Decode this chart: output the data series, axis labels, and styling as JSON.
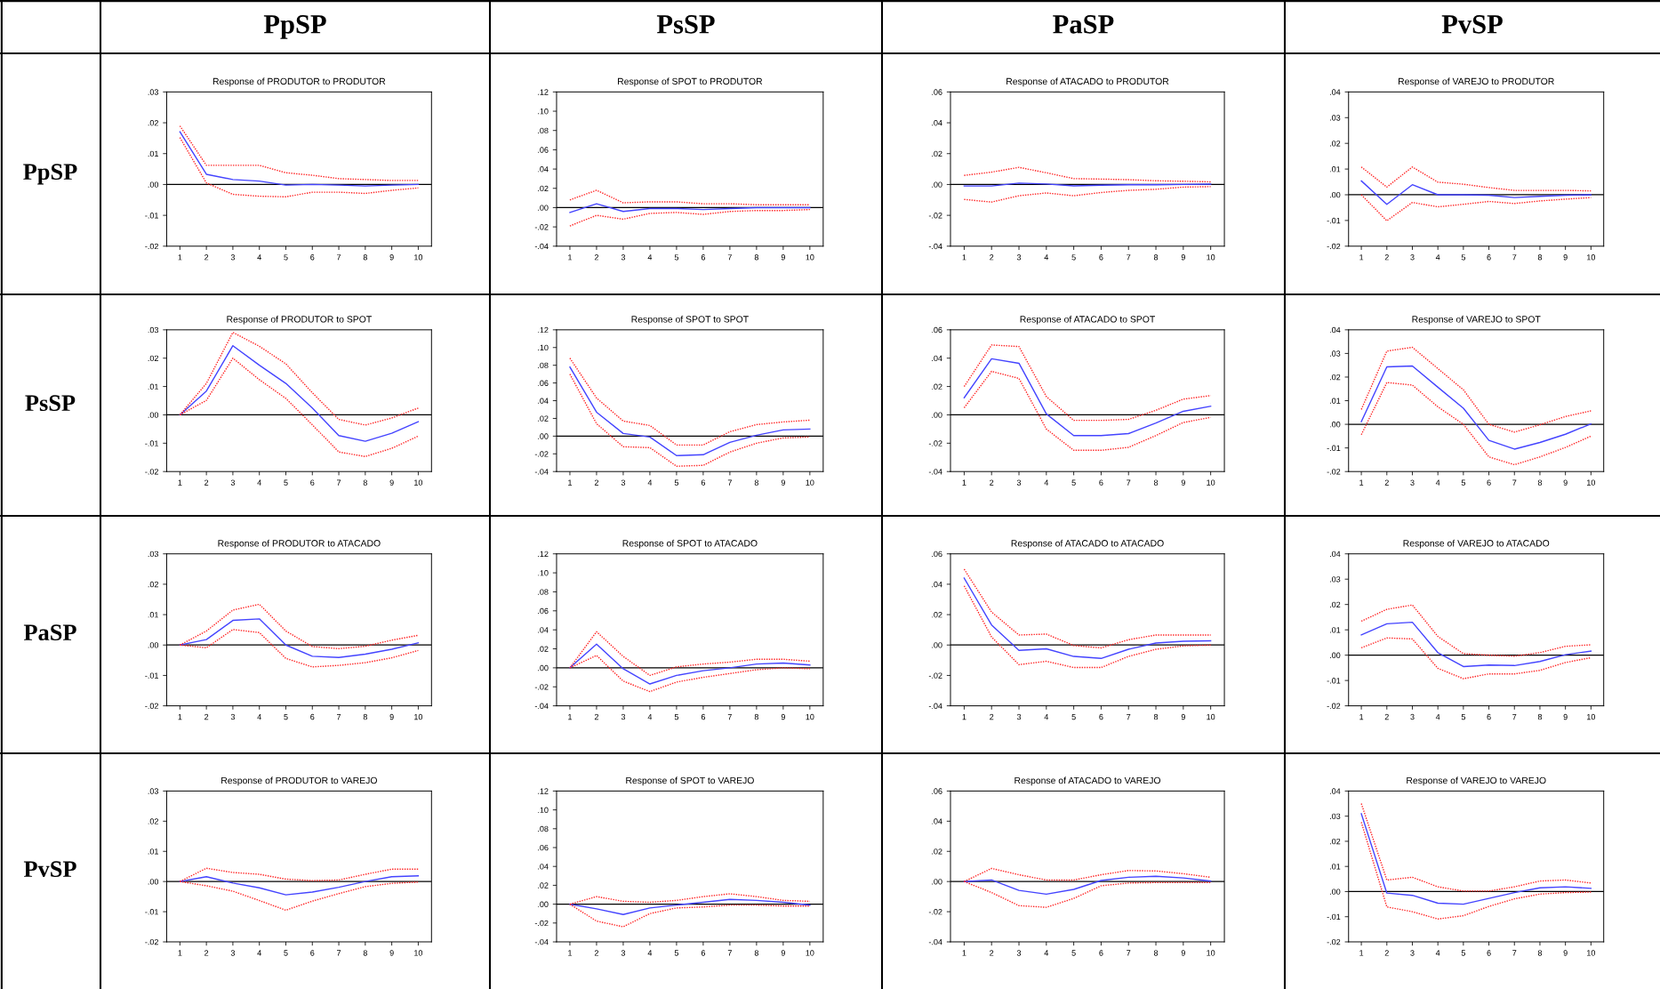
{
  "chart_data": [
    {
      "type": "line",
      "title": "Response of PRODUTOR to PRODUTOR",
      "annotations": [
        "PpSP",
        "PpSP"
      ],
      "x": [
        1,
        2,
        3,
        4,
        5,
        6,
        7,
        8,
        9,
        10
      ],
      "xlim": [
        0.5,
        10.5
      ],
      "xticks": [
        1,
        2,
        3,
        4,
        5,
        6,
        7,
        8,
        9,
        10
      ],
      "ylim": [
        -0.02,
        0.03
      ],
      "yticks": [
        {
          "value": -0.02,
          "label": "-.02"
        },
        {
          "value": -0.01,
          "label": "-.01"
        },
        {
          "value": 0,
          "label": ".00"
        },
        {
          "value": 0.01,
          "label": ".01"
        },
        {
          "value": 0.02,
          "label": ".02"
        },
        {
          "value": 0.03,
          "label": ".03"
        }
      ],
      "ref_lines": [
        {
          "axis": "y",
          "value": 0,
          "color": "#000000"
        }
      ],
      "series": [
        {
          "color": "#4444ff",
          "line_style": "solid",
          "values": [
            0.0171,
            0.0033,
            0.0016,
            0.0011,
            -0.0002,
            0,
            -0.0002,
            -0.0005,
            -0.0002,
            0
          ]
        },
        {
          "color": "#ff2020",
          "line_style": "dotted",
          "values": [
            0.019,
            0.0062,
            0.0062,
            0.0062,
            0.0038,
            0.003,
            0.0019,
            0.0016,
            0.0013,
            0.0013
          ]
        },
        {
          "color": "#ff2020",
          "line_style": "dotted",
          "values": [
            0.0152,
            0.0005,
            -0.0032,
            -0.0038,
            -0.004,
            -0.0025,
            -0.0025,
            -0.0029,
            -0.0019,
            -0.0011
          ]
        }
      ]
    },
    {
      "type": "line",
      "title": "Response of SPOT to PRODUTOR",
      "annotations": [
        "PsSP"
      ],
      "x": [
        1,
        2,
        3,
        4,
        5,
        6,
        7,
        8,
        9,
        10
      ],
      "xlim": [
        0.5,
        10.5
      ],
      "xticks": [
        1,
        2,
        3,
        4,
        5,
        6,
        7,
        8,
        9,
        10
      ],
      "ylim": [
        -0.04,
        0.12
      ],
      "yticks": [
        {
          "value": -0.04,
          "label": "-.04"
        },
        {
          "value": -0.02,
          "label": "-.02"
        },
        {
          "value": 0,
          "label": ".00"
        },
        {
          "value": 0.02,
          "label": ".02"
        },
        {
          "value": 0.04,
          "label": ".04"
        },
        {
          "value": 0.06,
          "label": ".06"
        },
        {
          "value": 0.08,
          "label": ".08"
        },
        {
          "value": 0.1,
          "label": ".10"
        },
        {
          "value": 0.12,
          "label": ".12"
        }
      ],
      "ref_lines": [
        {
          "axis": "y",
          "value": 0,
          "color": "#000000"
        }
      ],
      "series": [
        {
          "color": "#4444ff",
          "line_style": "solid",
          "values": [
            -0.005,
            0.004,
            -0.004,
            -0.001,
            -0.001,
            -0.002,
            -0.001,
            0,
            0,
            0
          ]
        },
        {
          "color": "#ff2020",
          "line_style": "dotted",
          "values": [
            0.008,
            0.018,
            0.005,
            0.006,
            0.006,
            0.004,
            0.004,
            0.003,
            0.003,
            0.003
          ]
        },
        {
          "color": "#ff2020",
          "line_style": "dotted",
          "values": [
            -0.019,
            -0.008,
            -0.012,
            -0.006,
            -0.005,
            -0.007,
            -0.004,
            -0.003,
            -0.003,
            -0.002
          ]
        }
      ]
    },
    {
      "type": "line",
      "title": "Response of ATACADO to PRODUTOR",
      "annotations": [
        "PaSP"
      ],
      "x": [
        1,
        2,
        3,
        4,
        5,
        6,
        7,
        8,
        9,
        10
      ],
      "xlim": [
        0.5,
        10.5
      ],
      "xticks": [
        1,
        2,
        3,
        4,
        5,
        6,
        7,
        8,
        9,
        10
      ],
      "ylim": [
        -0.04,
        0.06
      ],
      "yticks": [
        {
          "value": -0.04,
          "label": "-.04"
        },
        {
          "value": -0.02,
          "label": "-.02"
        },
        {
          "value": 0,
          "label": ".00"
        },
        {
          "value": 0.02,
          "label": ".02"
        },
        {
          "value": 0.04,
          "label": ".04"
        },
        {
          "value": 0.06,
          "label": ".06"
        }
      ],
      "ref_lines": [
        {
          "axis": "y",
          "value": 0,
          "color": "#000000"
        }
      ],
      "series": [
        {
          "color": "#4444ff",
          "line_style": "solid",
          "values": [
            -0.001,
            -0.001,
            0.0009,
            0.0003,
            -0.0009,
            -0.0005,
            -0.0002,
            -0.0002,
            0,
            0.0002
          ]
        },
        {
          "color": "#ff2020",
          "line_style": "dotted",
          "values": [
            0.0059,
            0.008,
            0.0111,
            0.0076,
            0.0038,
            0.0035,
            0.0031,
            0.0024,
            0.0021,
            0.0017
          ]
        },
        {
          "color": "#ff2020",
          "line_style": "dotted",
          "values": [
            -0.0097,
            -0.0114,
            -0.0073,
            -0.0055,
            -0.0073,
            -0.0052,
            -0.0038,
            -0.0031,
            -0.0017,
            -0.0014
          ]
        }
      ]
    },
    {
      "type": "line",
      "title": "Response of VAREJO to PRODUTOR",
      "annotations": [
        "PvSP"
      ],
      "x": [
        1,
        2,
        3,
        4,
        5,
        6,
        7,
        8,
        9,
        10
      ],
      "xlim": [
        0.5,
        10.5
      ],
      "xticks": [
        1,
        2,
        3,
        4,
        5,
        6,
        7,
        8,
        9,
        10
      ],
      "ylim": [
        -0.02,
        0.04
      ],
      "yticks": [
        {
          "value": -0.02,
          "label": "-.02"
        },
        {
          "value": -0.01,
          "label": "-.01"
        },
        {
          "value": 0,
          "label": ".00"
        },
        {
          "value": 0.01,
          "label": ".01"
        },
        {
          "value": 0.02,
          "label": ".02"
        },
        {
          "value": 0.03,
          "label": ".03"
        },
        {
          "value": 0.04,
          "label": ".04"
        }
      ],
      "ref_lines": [
        {
          "axis": "y",
          "value": 0,
          "color": "#000000"
        }
      ],
      "series": [
        {
          "color": "#4444ff",
          "line_style": "solid",
          "values": [
            0.0054,
            -0.0037,
            0.0039,
            0,
            0,
            -0.0002,
            -0.0011,
            -0.0006,
            -0.0002,
            0
          ]
        },
        {
          "color": "#ff2020",
          "line_style": "dotted",
          "values": [
            0.0108,
            0.003,
            0.0108,
            0.0049,
            0.0041,
            0.0028,
            0.0017,
            0.0017,
            0.0017,
            0.0015
          ]
        },
        {
          "color": "#ff2020",
          "line_style": "dotted",
          "values": [
            0,
            -0.0101,
            -0.003,
            -0.0047,
            -0.0037,
            -0.0026,
            -0.0034,
            -0.0024,
            -0.0017,
            -0.0011
          ]
        }
      ]
    },
    {
      "type": "line",
      "title": "Response of PRODUTOR to SPOT",
      "annotations": [
        "PsSP"
      ],
      "x": [
        1,
        2,
        3,
        4,
        5,
        6,
        7,
        8,
        9,
        10
      ],
      "xlim": [
        0.5,
        10.5
      ],
      "xticks": [
        1,
        2,
        3,
        4,
        5,
        6,
        7,
        8,
        9,
        10
      ],
      "ylim": [
        -0.02,
        0.03
      ],
      "yticks": [
        {
          "value": -0.02,
          "label": "-.02"
        },
        {
          "value": -0.01,
          "label": "-.01"
        },
        {
          "value": 0,
          "label": ".00"
        },
        {
          "value": 0.01,
          "label": ".01"
        },
        {
          "value": 0.02,
          "label": ".02"
        },
        {
          "value": 0.03,
          "label": ".03"
        }
      ],
      "ref_lines": [
        {
          "axis": "y",
          "value": 0,
          "color": "#000000"
        }
      ],
      "series": [
        {
          "color": "#4444ff",
          "line_style": "solid",
          "values": [
            0,
            0.0084,
            0.0244,
            0.0175,
            0.0111,
            0.0024,
            -0.0073,
            -0.0093,
            -0.0065,
            -0.0024
          ]
        },
        {
          "color": "#ff2020",
          "line_style": "dotted",
          "values": [
            0,
            0.0111,
            0.0291,
            0.0242,
            0.018,
            0.0078,
            -0.0016,
            -0.0036,
            -0.0011,
            0.0024
          ]
        },
        {
          "color": "#ff2020",
          "line_style": "dotted",
          "values": [
            0,
            0.0051,
            0.02,
            0.0124,
            0.0058,
            -0.0035,
            -0.0131,
            -0.0147,
            -0.0118,
            -0.0075
          ]
        }
      ]
    },
    {
      "type": "line",
      "title": "Response of SPOT to SPOT",
      "x": [
        1,
        2,
        3,
        4,
        5,
        6,
        7,
        8,
        9,
        10
      ],
      "xlim": [
        0.5,
        10.5
      ],
      "xticks": [
        1,
        2,
        3,
        4,
        5,
        6,
        7,
        8,
        9,
        10
      ],
      "ylim": [
        -0.04,
        0.12
      ],
      "yticks": [
        {
          "value": -0.04,
          "label": "-.04"
        },
        {
          "value": -0.02,
          "label": "-.02"
        },
        {
          "value": 0,
          "label": ".00"
        },
        {
          "value": 0.02,
          "label": ".02"
        },
        {
          "value": 0.04,
          "label": ".04"
        },
        {
          "value": 0.06,
          "label": ".06"
        },
        {
          "value": 0.08,
          "label": ".08"
        },
        {
          "value": 0.1,
          "label": ".10"
        },
        {
          "value": 0.12,
          "label": ".12"
        }
      ],
      "ref_lines": [
        {
          "axis": "y",
          "value": 0,
          "color": "#000000"
        }
      ],
      "series": [
        {
          "color": "#4444ff",
          "line_style": "solid",
          "values": [
            0.078,
            0.027,
            0.003,
            -0.001,
            -0.022,
            -0.021,
            -0.007,
            0.001,
            0.007,
            0.008
          ]
        },
        {
          "color": "#ff2020",
          "line_style": "dotted",
          "values": [
            0.088,
            0.043,
            0.017,
            0.012,
            -0.01,
            -0.01,
            0.005,
            0.013,
            0.016,
            0.018
          ]
        },
        {
          "color": "#ff2020",
          "line_style": "dotted",
          "values": [
            0.07,
            0.014,
            -0.012,
            -0.013,
            -0.034,
            -0.033,
            -0.018,
            -0.008,
            -0.002,
            -0.001
          ]
        }
      ]
    },
    {
      "type": "line",
      "title": "Response of ATACADO to SPOT",
      "x": [
        1,
        2,
        3,
        4,
        5,
        6,
        7,
        8,
        9,
        10
      ],
      "xlim": [
        0.5,
        10.5
      ],
      "xticks": [
        1,
        2,
        3,
        4,
        5,
        6,
        7,
        8,
        9,
        10
      ],
      "ylim": [
        -0.04,
        0.06
      ],
      "yticks": [
        {
          "value": -0.04,
          "label": "-.04"
        },
        {
          "value": -0.02,
          "label": "-.02"
        },
        {
          "value": 0,
          "label": ".00"
        },
        {
          "value": 0.02,
          "label": ".02"
        },
        {
          "value": 0.04,
          "label": ".04"
        },
        {
          "value": 0.06,
          "label": ".06"
        }
      ],
      "ref_lines": [
        {
          "axis": "y",
          "value": 0,
          "color": "#000000"
        }
      ],
      "series": [
        {
          "color": "#4444ff",
          "line_style": "solid",
          "values": [
            0.0121,
            0.0396,
            0.0364,
            0.0007,
            -0.0146,
            -0.0146,
            -0.0132,
            -0.0057,
            0.0025,
            0.0061
          ]
        },
        {
          "color": "#ff2020",
          "line_style": "dotted",
          "values": [
            0.02,
            0.0493,
            0.0482,
            0.0129,
            -0.0039,
            -0.0039,
            -0.0032,
            0.0032,
            0.0111,
            0.0136
          ]
        },
        {
          "color": "#ff2020",
          "line_style": "dotted",
          "values": [
            0.005,
            0.0307,
            0.0257,
            -0.01,
            -0.025,
            -0.025,
            -0.0229,
            -0.0146,
            -0.0054,
            -0.0018
          ]
        }
      ]
    },
    {
      "type": "line",
      "title": "Response of VAREJO to SPOT",
      "x": [
        1,
        2,
        3,
        4,
        5,
        6,
        7,
        8,
        9,
        10
      ],
      "xlim": [
        0.5,
        10.5
      ],
      "xticks": [
        1,
        2,
        3,
        4,
        5,
        6,
        7,
        8,
        9,
        10
      ],
      "ylim": [
        -0.02,
        0.04
      ],
      "yticks": [
        {
          "value": -0.02,
          "label": "-.02"
        },
        {
          "value": -0.01,
          "label": "-.01"
        },
        {
          "value": 0,
          "label": ".00"
        },
        {
          "value": 0.01,
          "label": ".01"
        },
        {
          "value": 0.02,
          "label": ".02"
        },
        {
          "value": 0.03,
          "label": ".03"
        },
        {
          "value": 0.04,
          "label": ".04"
        }
      ],
      "ref_lines": [
        {
          "axis": "y",
          "value": 0,
          "color": "#000000"
        }
      ],
      "series": [
        {
          "color": "#4444ff",
          "line_style": "solid",
          "values": [
            0.0011,
            0.0243,
            0.0247,
            0.0157,
            0.0068,
            -0.0068,
            -0.0105,
            -0.0077,
            -0.0042,
            0.0002
          ]
        },
        {
          "color": "#ff2020",
          "line_style": "dotted",
          "values": [
            0.0063,
            0.031,
            0.0326,
            0.0236,
            0.0146,
            0,
            -0.0033,
            -0.0002,
            0.0033,
            0.0057
          ]
        },
        {
          "color": "#ff2020",
          "line_style": "dotted",
          "values": [
            -0.0044,
            0.0177,
            0.0166,
            0.0074,
            0,
            -0.0138,
            -0.0171,
            -0.0138,
            -0.0098,
            -0.005
          ]
        }
      ]
    },
    {
      "type": "line",
      "title": "Response of PRODUTOR to ATACADO",
      "annotations": [
        "PaSP"
      ],
      "x": [
        1,
        2,
        3,
        4,
        5,
        6,
        7,
        8,
        9,
        10
      ],
      "xlim": [
        0.5,
        10.5
      ],
      "xticks": [
        1,
        2,
        3,
        4,
        5,
        6,
        7,
        8,
        9,
        10
      ],
      "ylim": [
        -0.02,
        0.03
      ],
      "yticks": [
        {
          "value": -0.02,
          "label": "-.02"
        },
        {
          "value": -0.01,
          "label": "-.01"
        },
        {
          "value": 0,
          "label": ".00"
        },
        {
          "value": 0.01,
          "label": ".01"
        },
        {
          "value": 0.02,
          "label": ".02"
        },
        {
          "value": 0.03,
          "label": ".03"
        }
      ],
      "ref_lines": [
        {
          "axis": "y",
          "value": 0,
          "color": "#000000"
        }
      ],
      "series": [
        {
          "color": "#4444ff",
          "line_style": "solid",
          "values": [
            0,
            0.0018,
            0.0081,
            0.0086,
            0,
            -0.0037,
            -0.0041,
            -0.003,
            -0.0014,
            0.0007
          ]
        },
        {
          "color": "#ff2020",
          "line_style": "dotted",
          "values": [
            0,
            0.0046,
            0.0115,
            0.0134,
            0.0046,
            -0.0005,
            -0.0012,
            -0.0004,
            0.0016,
            0.0032
          ]
        },
        {
          "color": "#ff2020",
          "line_style": "dotted",
          "values": [
            0,
            -0.0009,
            0.0051,
            0.0041,
            -0.0044,
            -0.0072,
            -0.0067,
            -0.0058,
            -0.0042,
            -0.0018
          ]
        }
      ]
    },
    {
      "type": "line",
      "title": "Response of SPOT to ATACADO",
      "x": [
        1,
        2,
        3,
        4,
        5,
        6,
        7,
        8,
        9,
        10
      ],
      "xlim": [
        0.5,
        10.5
      ],
      "xticks": [
        1,
        2,
        3,
        4,
        5,
        6,
        7,
        8,
        9,
        10
      ],
      "ylim": [
        -0.04,
        0.12
      ],
      "yticks": [
        {
          "value": -0.04,
          "label": "-.04"
        },
        {
          "value": -0.02,
          "label": "-.02"
        },
        {
          "value": 0,
          "label": ".00"
        },
        {
          "value": 0.02,
          "label": ".02"
        },
        {
          "value": 0.04,
          "label": ".04"
        },
        {
          "value": 0.06,
          "label": ".06"
        },
        {
          "value": 0.08,
          "label": ".08"
        },
        {
          "value": 0.1,
          "label": ".10"
        },
        {
          "value": 0.12,
          "label": ".12"
        }
      ],
      "ref_lines": [
        {
          "axis": "y",
          "value": 0,
          "color": "#000000"
        }
      ],
      "series": [
        {
          "color": "#4444ff",
          "line_style": "solid",
          "values": [
            0,
            0.025,
            -0.001,
            -0.017,
            -0.008,
            -0.003,
            0,
            0.004,
            0.005,
            0.003
          ]
        },
        {
          "color": "#ff2020",
          "line_style": "dotted",
          "values": [
            0,
            0.038,
            0.012,
            -0.008,
            0.001,
            0.004,
            0.006,
            0.009,
            0.009,
            0.007
          ]
        },
        {
          "color": "#ff2020",
          "line_style": "dotted",
          "values": [
            0,
            0.013,
            -0.014,
            -0.025,
            -0.015,
            -0.01,
            -0.006,
            -0.002,
            0,
            -0.001
          ]
        }
      ]
    },
    {
      "type": "line",
      "title": "Response of ATACADO to ATACADO",
      "x": [
        1,
        2,
        3,
        4,
        5,
        6,
        7,
        8,
        9,
        10
      ],
      "xlim": [
        0.5,
        10.5
      ],
      "xticks": [
        1,
        2,
        3,
        4,
        5,
        6,
        7,
        8,
        9,
        10
      ],
      "ylim": [
        -0.04,
        0.06
      ],
      "yticks": [
        {
          "value": -0.04,
          "label": "-.04"
        },
        {
          "value": -0.02,
          "label": "-.02"
        },
        {
          "value": 0,
          "label": ".00"
        },
        {
          "value": 0.02,
          "label": ".02"
        },
        {
          "value": 0.04,
          "label": ".04"
        },
        {
          "value": 0.06,
          "label": ".06"
        }
      ],
      "ref_lines": [
        {
          "axis": "y",
          "value": 0,
          "color": "#000000"
        }
      ],
      "series": [
        {
          "color": "#4444ff",
          "line_style": "solid",
          "values": [
            0.044,
            0.0132,
            -0.0035,
            -0.0025,
            -0.0075,
            -0.0088,
            -0.0028,
            0.0013,
            0.0025,
            0.0028
          ]
        },
        {
          "color": "#ff2020",
          "line_style": "dotted",
          "values": [
            0.0499,
            0.0217,
            0.0066,
            0.0072,
            -0.0003,
            -0.0019,
            0.0035,
            0.0066,
            0.0066,
            0.0066
          ]
        },
        {
          "color": "#ff2020",
          "line_style": "dotted",
          "values": [
            0.0389,
            0.0053,
            -0.0129,
            -0.0107,
            -0.0148,
            -0.0148,
            -0.0075,
            -0.0028,
            -0.0006,
            0
          ]
        }
      ]
    },
    {
      "type": "line",
      "title": "Response of VAREJO to ATACADO",
      "x": [
        1,
        2,
        3,
        4,
        5,
        6,
        7,
        8,
        9,
        10
      ],
      "xlim": [
        0.5,
        10.5
      ],
      "xticks": [
        1,
        2,
        3,
        4,
        5,
        6,
        7,
        8,
        9,
        10
      ],
      "ylim": [
        -0.02,
        0.04
      ],
      "yticks": [
        {
          "value": -0.02,
          "label": "-.02"
        },
        {
          "value": -0.01,
          "label": "-.01"
        },
        {
          "value": 0,
          "label": ".00"
        },
        {
          "value": 0.01,
          "label": ".01"
        },
        {
          "value": 0.02,
          "label": ".02"
        },
        {
          "value": 0.03,
          "label": ".03"
        },
        {
          "value": 0.04,
          "label": ".04"
        }
      ],
      "ref_lines": [
        {
          "axis": "y",
          "value": 0,
          "color": "#000000"
        }
      ],
      "series": [
        {
          "color": "#4444ff",
          "line_style": "solid",
          "values": [
            0.008,
            0.0124,
            0.013,
            0.001,
            -0.0045,
            -0.0039,
            -0.0041,
            -0.0025,
            0.0002,
            0.0016
          ]
        },
        {
          "color": "#ff2020",
          "line_style": "dotted",
          "values": [
            0.0134,
            0.0181,
            0.0198,
            0.0074,
            0.0006,
            0,
            -0.0004,
            0.001,
            0.0035,
            0.0041
          ]
        },
        {
          "color": "#ff2020",
          "line_style": "dotted",
          "values": [
            0.0029,
            0.0068,
            0.0064,
            -0.0052,
            -0.0093,
            -0.0074,
            -0.0074,
            -0.006,
            -0.0029,
            -0.001
          ]
        }
      ]
    },
    {
      "type": "line",
      "title": "Response of PRODUTOR to VAREJO",
      "annotations": [
        "PvSP"
      ],
      "x": [
        1,
        2,
        3,
        4,
        5,
        6,
        7,
        8,
        9,
        10
      ],
      "xlim": [
        0.5,
        10.5
      ],
      "xticks": [
        1,
        2,
        3,
        4,
        5,
        6,
        7,
        8,
        9,
        10
      ],
      "ylim": [
        -0.02,
        0.03
      ],
      "yticks": [
        {
          "value": -0.02,
          "label": "-.02"
        },
        {
          "value": -0.01,
          "label": "-.01"
        },
        {
          "value": 0,
          "label": ".00"
        },
        {
          "value": 0.01,
          "label": ".01"
        },
        {
          "value": 0.02,
          "label": ".02"
        },
        {
          "value": 0.03,
          "label": ".03"
        }
      ],
      "ref_lines": [
        {
          "axis": "y",
          "value": 0,
          "color": "#000000"
        }
      ],
      "series": [
        {
          "color": "#4444ff",
          "line_style": "solid",
          "values": [
            0,
            0.0016,
            -0.0005,
            -0.0021,
            -0.0044,
            -0.0035,
            -0.0019,
            0,
            0.0016,
            0.0019
          ]
        },
        {
          "color": "#ff2020",
          "line_style": "dotted",
          "values": [
            0,
            0.0044,
            0.003,
            0.0024,
            0.0008,
            0.0003,
            0.0005,
            0.0024,
            0.0041,
            0.0041
          ]
        },
        {
          "color": "#ff2020",
          "line_style": "dotted",
          "values": [
            0,
            -0.0014,
            -0.0032,
            -0.0063,
            -0.0095,
            -0.0065,
            -0.004,
            -0.0017,
            -0.0006,
            -0.0002
          ]
        }
      ]
    },
    {
      "type": "line",
      "title": "Response of SPOT to VAREJO",
      "x": [
        1,
        2,
        3,
        4,
        5,
        6,
        7,
        8,
        9,
        10
      ],
      "xlim": [
        0.5,
        10.5
      ],
      "xticks": [
        1,
        2,
        3,
        4,
        5,
        6,
        7,
        8,
        9,
        10
      ],
      "ylim": [
        -0.04,
        0.12
      ],
      "yticks": [
        {
          "value": -0.04,
          "label": "-.04"
        },
        {
          "value": -0.02,
          "label": "-.02"
        },
        {
          "value": 0,
          "label": ".00"
        },
        {
          "value": 0.02,
          "label": ".02"
        },
        {
          "value": 0.04,
          "label": ".04"
        },
        {
          "value": 0.06,
          "label": ".06"
        },
        {
          "value": 0.08,
          "label": ".08"
        },
        {
          "value": 0.1,
          "label": ".10"
        },
        {
          "value": 0.12,
          "label": ".12"
        }
      ],
      "ref_lines": [
        {
          "axis": "y",
          "value": 0,
          "color": "#000000"
        }
      ],
      "series": [
        {
          "color": "#4444ff",
          "line_style": "solid",
          "values": [
            0,
            -0.005,
            -0.011,
            -0.004,
            -0.001,
            0.002,
            0.005,
            0.004,
            0.002,
            -0.001
          ]
        },
        {
          "color": "#ff2020",
          "line_style": "dotted",
          "values": [
            0,
            0.008,
            0.003,
            0.002,
            0.004,
            0.008,
            0.011,
            0.008,
            0.004,
            0.003
          ]
        },
        {
          "color": "#ff2020",
          "line_style": "dotted",
          "values": [
            0,
            -0.018,
            -0.024,
            -0.01,
            -0.004,
            -0.003,
            -0.001,
            -0.001,
            -0.002,
            -0.002
          ]
        }
      ]
    },
    {
      "type": "line",
      "title": "Response of ATACADO to VAREJO",
      "x": [
        1,
        2,
        3,
        4,
        5,
        6,
        7,
        8,
        9,
        10
      ],
      "xlim": [
        0.5,
        10.5
      ],
      "xticks": [
        1,
        2,
        3,
        4,
        5,
        6,
        7,
        8,
        9,
        10
      ],
      "ylim": [
        -0.04,
        0.06
      ],
      "yticks": [
        {
          "value": -0.04,
          "label": "-.04"
        },
        {
          "value": -0.02,
          "label": "-.02"
        },
        {
          "value": 0,
          "label": ".00"
        },
        {
          "value": 0.02,
          "label": ".02"
        },
        {
          "value": 0.04,
          "label": ".04"
        },
        {
          "value": 0.06,
          "label": ".06"
        }
      ],
      "ref_lines": [
        {
          "axis": "y",
          "value": 0,
          "color": "#000000"
        }
      ],
      "series": [
        {
          "color": "#4444ff",
          "line_style": "solid",
          "values": [
            0,
            0.001,
            -0.0059,
            -0.0084,
            -0.0052,
            0.0007,
            0.0028,
            0.0035,
            0.0024,
            0.0003
          ]
        },
        {
          "color": "#ff2020",
          "line_style": "dotted",
          "values": [
            0,
            0.0087,
            0.0045,
            0.001,
            0.001,
            0.0045,
            0.0073,
            0.007,
            0.0052,
            0.0028
          ]
        },
        {
          "color": "#ff2020",
          "line_style": "dotted",
          "values": [
            0,
            -0.0073,
            -0.016,
            -0.0171,
            -0.0112,
            -0.0028,
            -0.001,
            -0.0007,
            -0.0007,
            -0.0007
          ]
        }
      ]
    },
    {
      "type": "line",
      "title": "Response of VAREJO to VAREJO",
      "x": [
        1,
        2,
        3,
        4,
        5,
        6,
        7,
        8,
        9,
        10
      ],
      "xlim": [
        0.5,
        10.5
      ],
      "xticks": [
        1,
        2,
        3,
        4,
        5,
        6,
        7,
        8,
        9,
        10
      ],
      "ylim": [
        -0.02,
        0.04
      ],
      "yticks": [
        {
          "value": -0.02,
          "label": "-.02"
        },
        {
          "value": -0.01,
          "label": "-.01"
        },
        {
          "value": 0,
          "label": ".00"
        },
        {
          "value": 0.01,
          "label": ".01"
        },
        {
          "value": 0.02,
          "label": ".02"
        },
        {
          "value": 0.03,
          "label": ".03"
        },
        {
          "value": 0.04,
          "label": ".04"
        }
      ],
      "ref_lines": [
        {
          "axis": "y",
          "value": 0,
          "color": "#000000"
        }
      ],
      "series": [
        {
          "color": "#4444ff",
          "line_style": "solid",
          "values": [
            0.031,
            -0.0006,
            -0.0015,
            -0.0046,
            -0.005,
            -0.0027,
            -0.0004,
            0.0015,
            0.0019,
            0.0013
          ]
        },
        {
          "color": "#ff2020",
          "line_style": "dotted",
          "values": [
            0.035,
            0.0046,
            0.0057,
            0.0019,
            0.0002,
            0.0002,
            0.0019,
            0.0042,
            0.0046,
            0.0034
          ]
        },
        {
          "color": "#ff2020",
          "line_style": "dotted",
          "values": [
            0.0276,
            -0.0061,
            -0.008,
            -0.0109,
            -0.0096,
            -0.0059,
            -0.0029,
            -0.001,
            -0.0004,
            -0.0002
          ]
        }
      ]
    }
  ]
}
